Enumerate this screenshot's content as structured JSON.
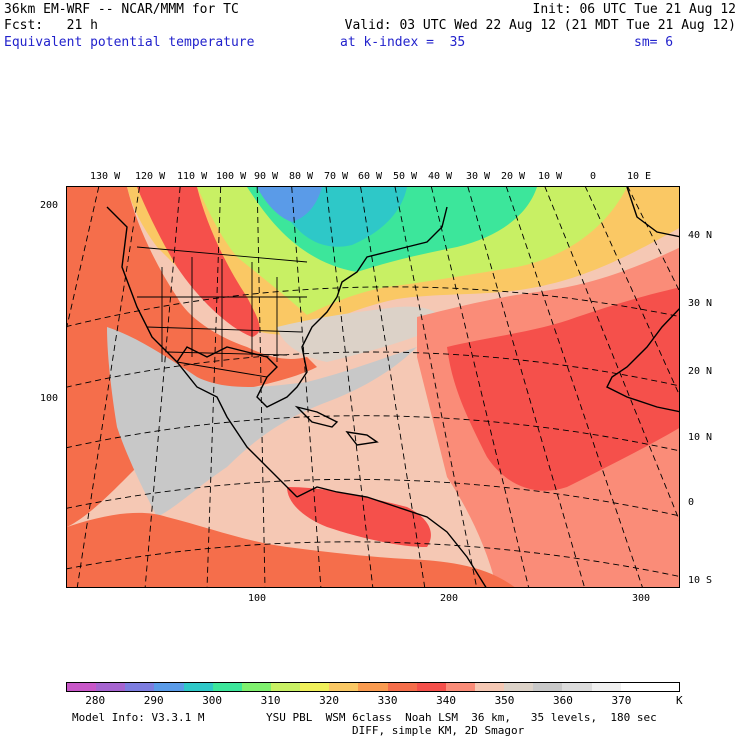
{
  "header": {
    "title_left": "36km EM-WRF -- NCAR/MMM for TC",
    "init": "Init: 06 UTC Tue 21 Aug 12",
    "fcst": "Fcst:   21 h",
    "valid": "Valid: 03 UTC Wed 22 Aug 12 (21 MDT Tue 21 Aug 12)",
    "field": "Equivalent potential temperature",
    "level": "at k-index =  35",
    "smooth": "sm= 6"
  },
  "map": {
    "top_lon_labels": [
      "130 W",
      "120 W",
      "110 W",
      "100 W",
      "90 W",
      "80 W",
      "70 W",
      "60 W",
      "50 W",
      "40 W",
      "30 W",
      "20 W",
      "10 W",
      "0",
      "10 E"
    ],
    "right_lat_labels": [
      "40 N",
      "30 N",
      "20 N",
      "10 N",
      "0",
      "10 S"
    ],
    "left_grid_labels": [
      "200",
      "100"
    ],
    "bottom_grid_labels": [
      "100",
      "200",
      "300"
    ]
  },
  "colorbar": {
    "unit": "K",
    "labels": [
      "280",
      "290",
      "300",
      "310",
      "320",
      "330",
      "340",
      "350",
      "360",
      "370"
    ],
    "colors": [
      "#c857c8",
      "#a664d0",
      "#7d7de0",
      "#5a9be8",
      "#2ec8c8",
      "#3ce69b",
      "#7ff06e",
      "#c8f064",
      "#f0f05a",
      "#fac864",
      "#fa9b50",
      "#f56e4b",
      "#f5504b",
      "#fa8c78",
      "#f5c8b4",
      "#dcd2c8",
      "#c8c8c8",
      "#dcdcdc",
      "#f0f0f0",
      "#ffffff",
      "#ffffff"
    ]
  },
  "footer": {
    "line1_left": "Model Info: V3.3.1 M",
    "line1_right": "YSU PBL  WSM 6class  Noah LSM  36 km,   35 levels,  180 sec",
    "line2": "DIFF, simple KM, 2D Smagor"
  }
}
